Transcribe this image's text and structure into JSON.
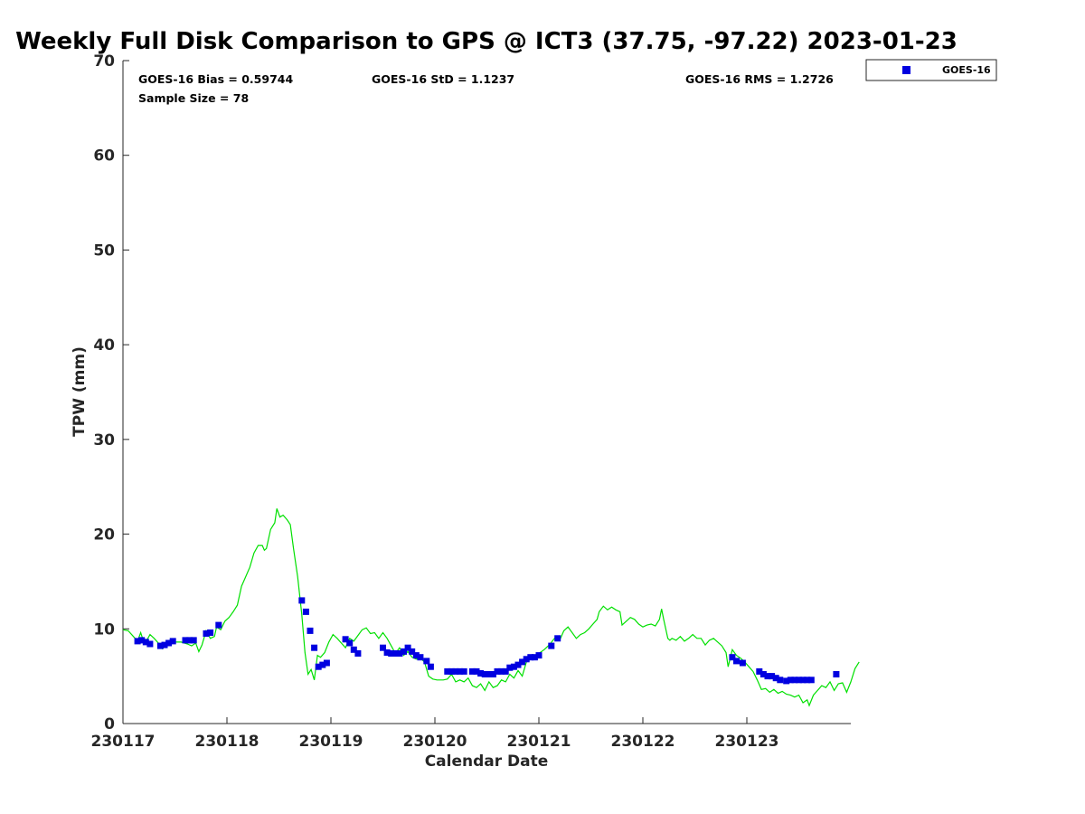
{
  "chart_data": {
    "type": "scatter",
    "title": "Weekly Full Disk Comparison to GPS @ ICT3 (37.75, -97.22) 2023-01-23",
    "xlabel": "Calendar Date",
    "ylabel": "TPW (mm)",
    "xlim": [
      0,
      7
    ],
    "ylim": [
      0,
      70
    ],
    "x_ticks": [
      0,
      1,
      2,
      3,
      4,
      5,
      6
    ],
    "x_tick_labels": [
      "230117",
      "230118",
      "230119",
      "230120",
      "230121",
      "230122",
      "230123"
    ],
    "y_ticks": [
      0,
      10,
      20,
      30,
      40,
      50,
      60,
      70
    ],
    "y_tick_labels": [
      "0",
      "10",
      "20",
      "30",
      "40",
      "50",
      "60",
      "70"
    ],
    "legend_position": "outside-top-right",
    "stats": {
      "bias": "GOES-16 Bias = 0.59744",
      "std": "GOES-16 StD = 1.1237",
      "rms": "GOES-16 RMS = 1.2726",
      "sample": "Sample Size = 78"
    },
    "series": [
      {
        "name": "GOES-16",
        "kind": "scatter",
        "marker": "square",
        "color": "#0000e0",
        "points": [
          [
            0.14,
            8.7
          ],
          [
            0.18,
            8.8
          ],
          [
            0.22,
            8.6
          ],
          [
            0.26,
            8.4
          ],
          [
            0.36,
            8.2
          ],
          [
            0.4,
            8.3
          ],
          [
            0.44,
            8.5
          ],
          [
            0.48,
            8.7
          ],
          [
            0.6,
            8.8
          ],
          [
            0.64,
            8.8
          ],
          [
            0.68,
            8.8
          ],
          [
            0.8,
            9.5
          ],
          [
            0.84,
            9.6
          ],
          [
            0.92,
            10.4
          ],
          [
            1.72,
            13.0
          ],
          [
            1.76,
            11.8
          ],
          [
            1.8,
            9.8
          ],
          [
            1.84,
            8.0
          ],
          [
            1.88,
            6.0
          ],
          [
            1.92,
            6.2
          ],
          [
            1.96,
            6.4
          ],
          [
            2.14,
            8.9
          ],
          [
            2.18,
            8.5
          ],
          [
            2.22,
            7.8
          ],
          [
            2.26,
            7.4
          ],
          [
            2.5,
            8.0
          ],
          [
            2.54,
            7.5
          ],
          [
            2.58,
            7.4
          ],
          [
            2.62,
            7.4
          ],
          [
            2.66,
            7.4
          ],
          [
            2.7,
            7.6
          ],
          [
            2.74,
            8.0
          ],
          [
            2.78,
            7.6
          ],
          [
            2.82,
            7.2
          ],
          [
            2.86,
            7.0
          ],
          [
            2.92,
            6.6
          ],
          [
            2.96,
            6.0
          ],
          [
            3.12,
            5.5
          ],
          [
            3.16,
            5.5
          ],
          [
            3.2,
            5.5
          ],
          [
            3.24,
            5.5
          ],
          [
            3.28,
            5.5
          ],
          [
            3.36,
            5.5
          ],
          [
            3.4,
            5.5
          ],
          [
            3.44,
            5.3
          ],
          [
            3.48,
            5.2
          ],
          [
            3.52,
            5.2
          ],
          [
            3.56,
            5.2
          ],
          [
            3.6,
            5.5
          ],
          [
            3.64,
            5.5
          ],
          [
            3.68,
            5.5
          ],
          [
            3.72,
            5.9
          ],
          [
            3.76,
            6.0
          ],
          [
            3.8,
            6.2
          ],
          [
            3.84,
            6.5
          ],
          [
            3.88,
            6.8
          ],
          [
            3.92,
            7.0
          ],
          [
            3.96,
            7.0
          ],
          [
            4.0,
            7.2
          ],
          [
            4.12,
            8.2
          ],
          [
            4.18,
            9.0
          ],
          [
            5.86,
            7.0
          ],
          [
            5.9,
            6.6
          ],
          [
            5.96,
            6.4
          ],
          [
            6.12,
            5.5
          ],
          [
            6.16,
            5.2
          ],
          [
            6.2,
            5.0
          ],
          [
            6.24,
            5.0
          ],
          [
            6.28,
            4.8
          ],
          [
            6.32,
            4.6
          ],
          [
            6.38,
            4.5
          ],
          [
            6.42,
            4.6
          ],
          [
            6.46,
            4.6
          ],
          [
            6.5,
            4.6
          ],
          [
            6.54,
            4.6
          ],
          [
            6.58,
            4.6
          ],
          [
            6.62,
            4.6
          ],
          [
            6.86,
            5.2
          ]
        ]
      },
      {
        "name": "",
        "kind": "line",
        "color": "#00e000",
        "points": [
          [
            0.0,
            9.9
          ],
          [
            0.05,
            9.8
          ],
          [
            0.1,
            9.2
          ],
          [
            0.14,
            8.7
          ],
          [
            0.17,
            9.6
          ],
          [
            0.2,
            8.6
          ],
          [
            0.23,
            8.8
          ],
          [
            0.26,
            9.4
          ],
          [
            0.3,
            9.0
          ],
          [
            0.34,
            8.5
          ],
          [
            0.38,
            7.9
          ],
          [
            0.42,
            8.4
          ],
          [
            0.46,
            8.9
          ],
          [
            0.5,
            8.6
          ],
          [
            0.56,
            8.6
          ],
          [
            0.62,
            8.4
          ],
          [
            0.66,
            8.2
          ],
          [
            0.7,
            8.5
          ],
          [
            0.73,
            7.6
          ],
          [
            0.76,
            8.3
          ],
          [
            0.8,
            9.8
          ],
          [
            0.84,
            9.0
          ],
          [
            0.88,
            9.2
          ],
          [
            0.9,
            10.2
          ],
          [
            0.94,
            9.9
          ],
          [
            0.98,
            10.8
          ],
          [
            1.02,
            11.2
          ],
          [
            1.06,
            11.8
          ],
          [
            1.1,
            12.5
          ],
          [
            1.14,
            14.5
          ],
          [
            1.18,
            15.5
          ],
          [
            1.22,
            16.5
          ],
          [
            1.26,
            18.0
          ],
          [
            1.3,
            18.8
          ],
          [
            1.34,
            18.8
          ],
          [
            1.36,
            18.3
          ],
          [
            1.38,
            18.5
          ],
          [
            1.42,
            20.5
          ],
          [
            1.46,
            21.2
          ],
          [
            1.48,
            22.7
          ],
          [
            1.51,
            21.8
          ],
          [
            1.54,
            22.0
          ],
          [
            1.58,
            21.5
          ],
          [
            1.61,
            21.0
          ],
          [
            1.64,
            18.5
          ],
          [
            1.68,
            15.5
          ],
          [
            1.72,
            11.5
          ],
          [
            1.75,
            7.5
          ],
          [
            1.78,
            5.2
          ],
          [
            1.81,
            5.7
          ],
          [
            1.84,
            4.6
          ],
          [
            1.87,
            7.2
          ],
          [
            1.9,
            7.0
          ],
          [
            1.94,
            7.5
          ],
          [
            1.98,
            8.6
          ],
          [
            2.02,
            9.4
          ],
          [
            2.06,
            9.0
          ],
          [
            2.1,
            8.5
          ],
          [
            2.14,
            8.0
          ],
          [
            2.18,
            9.0
          ],
          [
            2.22,
            8.7
          ],
          [
            2.26,
            9.3
          ],
          [
            2.3,
            9.9
          ],
          [
            2.34,
            10.1
          ],
          [
            2.38,
            9.5
          ],
          [
            2.42,
            9.6
          ],
          [
            2.46,
            9.0
          ],
          [
            2.5,
            9.6
          ],
          [
            2.54,
            9.0
          ],
          [
            2.58,
            8.2
          ],
          [
            2.62,
            7.4
          ],
          [
            2.66,
            8.0
          ],
          [
            2.7,
            7.2
          ],
          [
            2.74,
            7.6
          ],
          [
            2.78,
            7.0
          ],
          [
            2.82,
            6.8
          ],
          [
            2.86,
            6.9
          ],
          [
            2.9,
            6.5
          ],
          [
            2.94,
            5.0
          ],
          [
            2.98,
            4.7
          ],
          [
            3.02,
            4.6
          ],
          [
            3.08,
            4.6
          ],
          [
            3.12,
            4.7
          ],
          [
            3.16,
            5.2
          ],
          [
            3.2,
            4.4
          ],
          [
            3.24,
            4.6
          ],
          [
            3.28,
            4.4
          ],
          [
            3.32,
            4.8
          ],
          [
            3.36,
            4.0
          ],
          [
            3.4,
            3.8
          ],
          [
            3.44,
            4.2
          ],
          [
            3.48,
            3.5
          ],
          [
            3.52,
            4.4
          ],
          [
            3.56,
            3.8
          ],
          [
            3.6,
            4.0
          ],
          [
            3.64,
            4.6
          ],
          [
            3.68,
            4.4
          ],
          [
            3.72,
            5.2
          ],
          [
            3.76,
            4.8
          ],
          [
            3.8,
            5.6
          ],
          [
            3.84,
            5.0
          ],
          [
            3.88,
            6.5
          ],
          [
            3.92,
            6.8
          ],
          [
            3.96,
            7.0
          ],
          [
            4.0,
            7.4
          ],
          [
            4.05,
            7.8
          ],
          [
            4.1,
            8.3
          ],
          [
            4.15,
            9.0
          ],
          [
            4.2,
            8.8
          ],
          [
            4.24,
            9.8
          ],
          [
            4.28,
            10.2
          ],
          [
            4.32,
            9.6
          ],
          [
            4.36,
            9.0
          ],
          [
            4.4,
            9.4
          ],
          [
            4.44,
            9.6
          ],
          [
            4.48,
            10.0
          ],
          [
            4.52,
            10.5
          ],
          [
            4.56,
            11.0
          ],
          [
            4.58,
            11.8
          ],
          [
            4.62,
            12.4
          ],
          [
            4.66,
            12.0
          ],
          [
            4.7,
            12.3
          ],
          [
            4.74,
            12.0
          ],
          [
            4.78,
            11.8
          ],
          [
            4.8,
            10.4
          ],
          [
            4.84,
            10.8
          ],
          [
            4.88,
            11.2
          ],
          [
            4.92,
            11.0
          ],
          [
            4.96,
            10.5
          ],
          [
            5.0,
            10.2
          ],
          [
            5.04,
            10.4
          ],
          [
            5.08,
            10.5
          ],
          [
            5.12,
            10.3
          ],
          [
            5.16,
            11.0
          ],
          [
            5.18,
            12.1
          ],
          [
            5.2,
            11.0
          ],
          [
            5.22,
            10.0
          ],
          [
            5.24,
            9.0
          ],
          [
            5.26,
            8.8
          ],
          [
            5.28,
            9.0
          ],
          [
            5.32,
            8.8
          ],
          [
            5.36,
            9.2
          ],
          [
            5.4,
            8.7
          ],
          [
            5.44,
            9.0
          ],
          [
            5.48,
            9.4
          ],
          [
            5.52,
            9.0
          ],
          [
            5.56,
            9.0
          ],
          [
            5.6,
            8.3
          ],
          [
            5.64,
            8.8
          ],
          [
            5.68,
            9.0
          ],
          [
            5.72,
            8.6
          ],
          [
            5.76,
            8.2
          ],
          [
            5.8,
            7.5
          ],
          [
            5.82,
            6.0
          ],
          [
            5.86,
            7.8
          ],
          [
            5.9,
            7.2
          ],
          [
            5.94,
            6.9
          ],
          [
            5.98,
            6.5
          ],
          [
            6.02,
            6.0
          ],
          [
            6.06,
            5.5
          ],
          [
            6.1,
            4.6
          ],
          [
            6.14,
            3.6
          ],
          [
            6.18,
            3.7
          ],
          [
            6.22,
            3.3
          ],
          [
            6.26,
            3.6
          ],
          [
            6.3,
            3.2
          ],
          [
            6.34,
            3.4
          ],
          [
            6.38,
            3.1
          ],
          [
            6.42,
            3.0
          ],
          [
            6.46,
            2.8
          ],
          [
            6.5,
            3.0
          ],
          [
            6.54,
            2.2
          ],
          [
            6.58,
            2.5
          ],
          [
            6.6,
            1.9
          ],
          [
            6.64,
            3.0
          ],
          [
            6.68,
            3.5
          ],
          [
            6.72,
            4.0
          ],
          [
            6.76,
            3.8
          ],
          [
            6.8,
            4.4
          ],
          [
            6.84,
            3.5
          ],
          [
            6.88,
            4.2
          ],
          [
            6.92,
            4.3
          ],
          [
            6.96,
            3.3
          ],
          [
            7.0,
            4.4
          ],
          [
            7.04,
            5.8
          ],
          [
            7.08,
            6.5
          ]
        ]
      }
    ]
  }
}
